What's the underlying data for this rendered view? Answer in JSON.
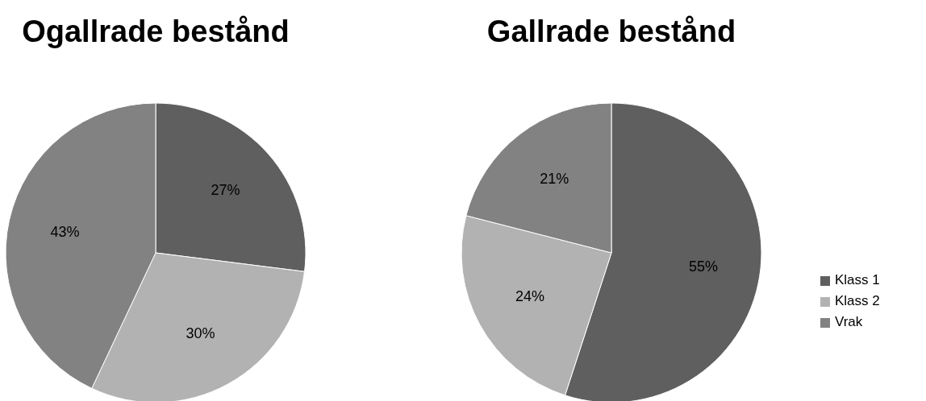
{
  "chart_data": [
    {
      "type": "pie",
      "title": "Ogallrade bestånd",
      "categories": [
        null,
        null,
        null
      ],
      "values": [
        27,
        30,
        43
      ],
      "value_labels": [
        "27%",
        "30%",
        "43%"
      ],
      "colors": [
        "#5f5f5f",
        "#b2b2b2",
        "#828282"
      ]
    },
    {
      "type": "pie",
      "title": "Gallrade bestånd",
      "categories": [
        "Klass 1",
        "Klass 2",
        "Vrak"
      ],
      "values": [
        55,
        24,
        21
      ],
      "value_labels": [
        "55%",
        "24%",
        "21%"
      ],
      "colors": [
        "#5f5f5f",
        "#b2b2b2",
        "#828282"
      ],
      "legend": "right"
    }
  ]
}
